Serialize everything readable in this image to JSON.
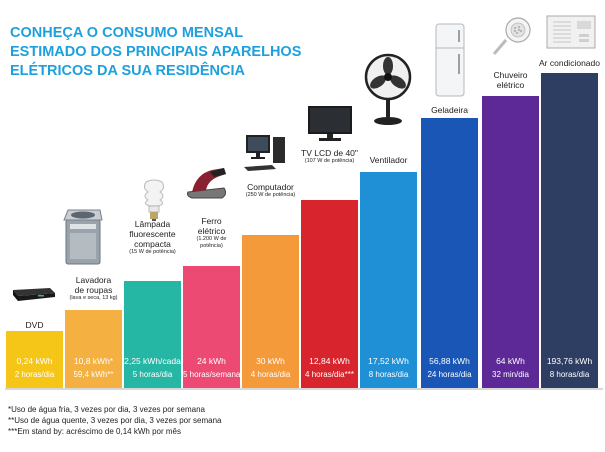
{
  "title_lines": [
    "CONHEÇA O CONSUMO MENSAL",
    "ESTIMADO DOS PRINCIPAIS APARELHOS",
    "ELÉTRICOS DA SUA RESIDÊNCIA"
  ],
  "colors": {
    "title": "#1da0dc",
    "bars": [
      "#f5c518",
      "#f4b040",
      "#26b6a4",
      "#ec4a73",
      "#f49a3a",
      "#d8242c",
      "#1f8fd6",
      "#1a56b5",
      "#5d2996",
      "#2e3e63"
    ]
  },
  "chart_data": {
    "type": "bar",
    "title": "CONHEÇA O CONSUMO MENSAL ESTIMADO DOS PRINCIPAIS APARELHOS ELÉTRICOS DA SUA RESIDÊNCIA",
    "unit": "kWh",
    "grid": false,
    "legend": "none",
    "categories": [
      "DVD",
      "Lavadora de roupas",
      "Lâmpada fluorescente compacta",
      "Ferro elétrico",
      "Computador",
      "TV LCD de 40\"",
      "Ventilador",
      "Geladeira",
      "Chuveiro elétrico",
      "Ar condicionado"
    ],
    "values": [
      0.24,
      10.8,
      2.25,
      24,
      30,
      12.84,
      17.52,
      56.88,
      64,
      193.76
    ],
    "scale": "ordinal"
  },
  "items": [
    {
      "name_lines": [
        "DVD"
      ],
      "note_lines": [],
      "value": "0,24 kWh",
      "usage": "2 horas/dia",
      "icon": "dvd-player-icon"
    },
    {
      "name_lines": [
        "Lavadora",
        "de roupas"
      ],
      "note_lines": [
        "(lava e seca, 13 kg)"
      ],
      "value": "10,8 kWh*",
      "usage": "59,4 kWh**",
      "icon": "washing-machine-icon"
    },
    {
      "name_lines": [
        "Lâmpada",
        "fluorescente",
        "compacta"
      ],
      "note_lines": [
        "(15 W de potência)"
      ],
      "value": "2,25 kWh/cada",
      "usage": "5 horas/dia",
      "icon": "light-bulb-icon"
    },
    {
      "name_lines": [
        "Ferro",
        "elétrico"
      ],
      "note_lines": [
        "(1.200 W de",
        "potência)"
      ],
      "value": "24 kWh",
      "usage": "5 horas/semana",
      "icon": "iron-icon"
    },
    {
      "name_lines": [
        "Computador"
      ],
      "note_lines": [
        "(250 W de potência)"
      ],
      "value": "30 kWh",
      "usage": "4 horas/dia",
      "icon": "computer-icon"
    },
    {
      "name_lines": [
        "TV LCD de 40\""
      ],
      "note_lines": [
        "(107 W de potência)"
      ],
      "value": "12,84 kWh",
      "usage": "4 horas/dia***",
      "icon": "tv-icon"
    },
    {
      "name_lines": [
        "Ventilador"
      ],
      "note_lines": [],
      "value": "17,52 kWh",
      "usage": "8 horas/dia",
      "icon": "fan-icon"
    },
    {
      "name_lines": [
        "Geladeira"
      ],
      "note_lines": [],
      "value": "56,88 kWh",
      "usage": "24 horas/dia",
      "icon": "refrigerator-icon"
    },
    {
      "name_lines": [
        "Chuveiro",
        "elétrico"
      ],
      "note_lines": [],
      "value": "64 kWh",
      "usage": "32 min/dia",
      "icon": "shower-icon"
    },
    {
      "name_lines": [
        "Ar condicionado"
      ],
      "note_lines": [],
      "value": "193,76 kWh",
      "usage": "8 horas/dia",
      "icon": "air-conditioner-icon"
    }
  ],
  "footnotes": [
    "*Uso de água fria, 3 vezes por dia, 3 vezes por semana",
    "**Uso de água quente, 3 vezes por dia, 3 vezes por semana",
    "***Em stand by: acréscimo de 0,14 kWh por mês"
  ]
}
